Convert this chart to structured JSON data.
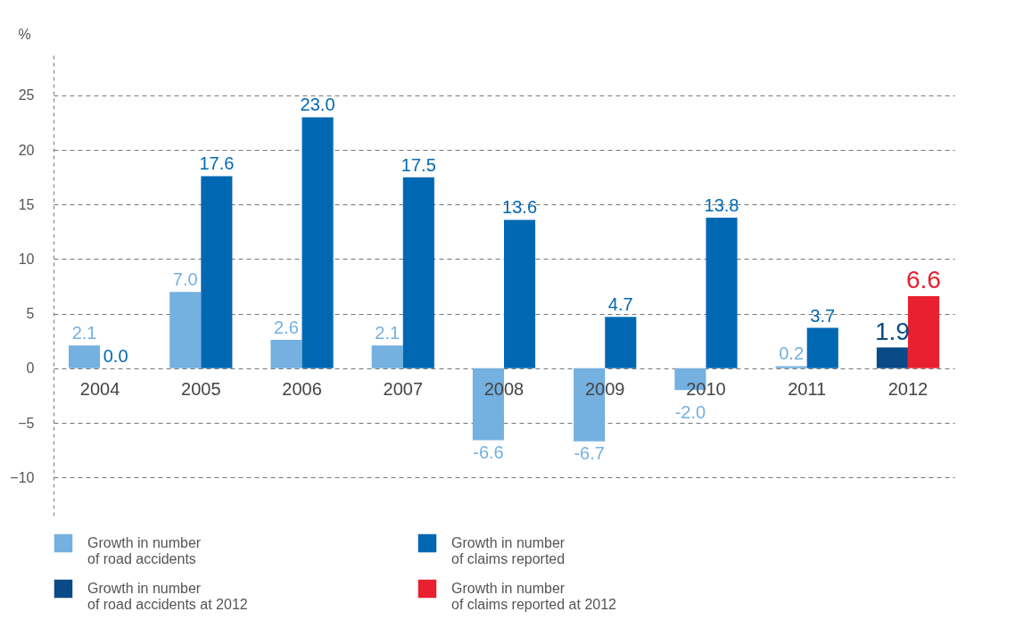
{
  "chart_data": {
    "type": "bar",
    "ylabel": "%",
    "categories": [
      "2004",
      "2005",
      "2006",
      "2007",
      "2008",
      "2009",
      "2010",
      "2011",
      "2012"
    ],
    "series": [
      {
        "name": "Growth in number of road accidents",
        "color": "#74b0e0",
        "values": [
          2.1,
          7.0,
          2.6,
          2.1,
          -6.6,
          -6.7,
          -2.0,
          0.2,
          null
        ],
        "value_labels": [
          "2.1",
          "7.0",
          "2.6",
          "2.1",
          "-6.6",
          "-6.7",
          "-2.0",
          "0.2",
          null
        ]
      },
      {
        "name": "Growth in number of claims reported",
        "color": "#0068b3",
        "values": [
          0.0,
          17.6,
          23.0,
          17.5,
          13.6,
          4.7,
          13.8,
          3.7,
          null
        ],
        "value_labels": [
          "0.0",
          "17.6",
          "23.0",
          "17.5",
          "13.6",
          "4.7",
          "13.8",
          "3.7",
          null
        ]
      },
      {
        "name": "Growth in number of road accidents at 2012",
        "color": "#0a4a86",
        "values": [
          null,
          null,
          null,
          null,
          null,
          null,
          null,
          null,
          1.9
        ],
        "value_labels": [
          null,
          null,
          null,
          null,
          null,
          null,
          null,
          null,
          "1.9"
        ]
      },
      {
        "name": "Growth in number of claims reported at 2012",
        "color": "#e8202f",
        "values": [
          null,
          null,
          null,
          null,
          null,
          null,
          null,
          null,
          6.6
        ],
        "value_labels": [
          null,
          null,
          null,
          null,
          null,
          null,
          null,
          null,
          "6.6"
        ]
      }
    ],
    "ylim": [
      -13.5,
      29
    ],
    "yticks": [
      -10,
      -5,
      0,
      5,
      10,
      15,
      20,
      25
    ],
    "grid": "y",
    "legend": "bottom"
  }
}
